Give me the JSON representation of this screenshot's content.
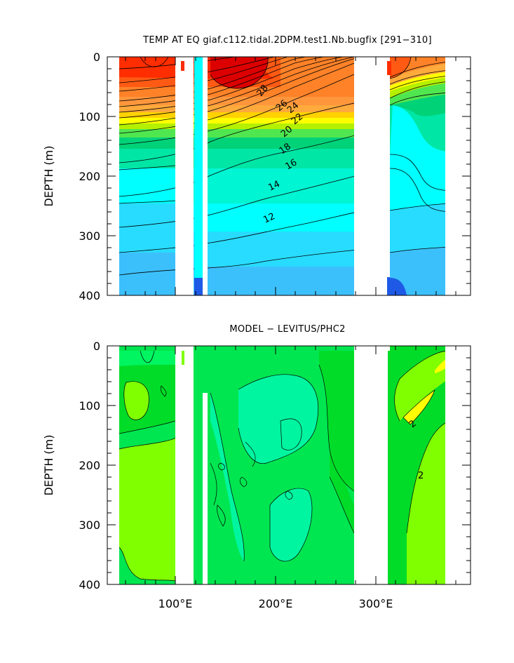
{
  "chart_data": [
    {
      "type": "heatmap",
      "title": "TEMP AT EQ giaf.c112.tidal.2DPM.test1.Nb.bugfix [291−310]",
      "ylabel": "DEPTH (m)",
      "xlabel": "",
      "ylim": [
        400,
        0
      ],
      "xlim": [
        30,
        390
      ],
      "yticks": [
        "0",
        "100",
        "200",
        "300",
        "400"
      ],
      "ytick_values": [
        0,
        100,
        200,
        300,
        400
      ],
      "xtick_values": [
        100,
        200,
        300
      ],
      "contour_labels": [
        {
          "text": "28",
          "lon": 190,
          "depth": 55
        },
        {
          "text": "26",
          "lon": 208,
          "depth": 75
        },
        {
          "text": "24",
          "lon": 220,
          "depth": 82
        },
        {
          "text": "22",
          "lon": 228,
          "depth": 100
        },
        {
          "text": "20",
          "lon": 213,
          "depth": 123
        },
        {
          "text": "18",
          "lon": 210,
          "depth": 153
        },
        {
          "text": "16",
          "lon": 218,
          "depth": 178
        },
        {
          "text": "14",
          "lon": 193,
          "depth": 215
        },
        {
          "text": "12",
          "lon": 185,
          "depth": 268
        }
      ],
      "levels": [
        10,
        11,
        12,
        13,
        14,
        15,
        16,
        17,
        18,
        19,
        20,
        21,
        22,
        23,
        24,
        25,
        26,
        27,
        28,
        29
      ],
      "colors": [
        "#1e5ae6",
        "#2878f0",
        "#3296f5",
        "#3cb4fa",
        "#28d2ff",
        "#28e6ff",
        "#00ffff",
        "#00f5d2",
        "#00e6a5",
        "#00d278",
        "#50e650",
        "#b4f000",
        "#ffff00",
        "#ffd200",
        "#ffaa3c",
        "#ff963c",
        "#ff8228",
        "#ff5a14",
        "#ff2d00",
        "#dc0000"
      ],
      "land_gaps": [
        [
          98,
          117
        ],
        [
          127,
          132
        ],
        [
          278,
          314
        ]
      ]
    },
    {
      "type": "heatmap",
      "title": "MODEL − LEVITUS/PHC2",
      "ylabel": "DEPTH (m)",
      "xlabel": "",
      "ylim": [
        400,
        0
      ],
      "xlim": [
        30,
        390
      ],
      "yticks": [
        "0",
        "100",
        "200",
        "300",
        "400"
      ],
      "ytick_values": [
        0,
        100,
        200,
        300,
        400
      ],
      "xticks": [
        "100°E",
        "200°E",
        "300°E"
      ],
      "xtick_values": [
        100,
        200,
        300
      ],
      "contour_labels": [
        {
          "text": "2",
          "lon": 319,
          "depth": 135
        },
        {
          "text": "2",
          "lon": 333,
          "depth": 225
        }
      ],
      "levels": [
        -3,
        -2,
        -1,
        0,
        1,
        2,
        3
      ],
      "colors": [
        "#00ffcc",
        "#00f5a0",
        "#00e650",
        "#00dc28",
        "#80ff00",
        "#ffff00",
        "#ffc800"
      ],
      "land_gaps": [
        [
          98,
          117
        ],
        [
          132,
          132
        ],
        [
          278,
          314
        ]
      ]
    }
  ]
}
